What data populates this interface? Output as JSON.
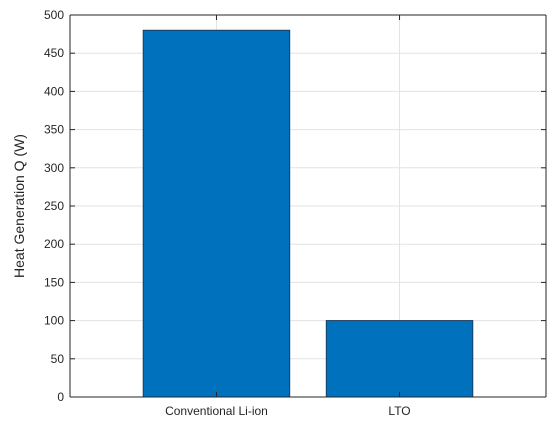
{
  "chart_data": {
    "type": "bar",
    "title": "",
    "xlabel": "",
    "ylabel": "Heat Generation Q (W)",
    "categories": [
      "Conventional Li-ion",
      "LTO"
    ],
    "values": [
      480,
      100
    ],
    "ylim": [
      0,
      500
    ],
    "yticks": [
      0,
      50,
      100,
      150,
      200,
      250,
      300,
      350,
      400,
      450,
      500
    ],
    "grid": true,
    "legend": "none",
    "bar_color": "#0072BD",
    "bar_edge_color": "#1a3b5c",
    "grid_color": "#e3e3e3",
    "axis_color": "#262626"
  }
}
